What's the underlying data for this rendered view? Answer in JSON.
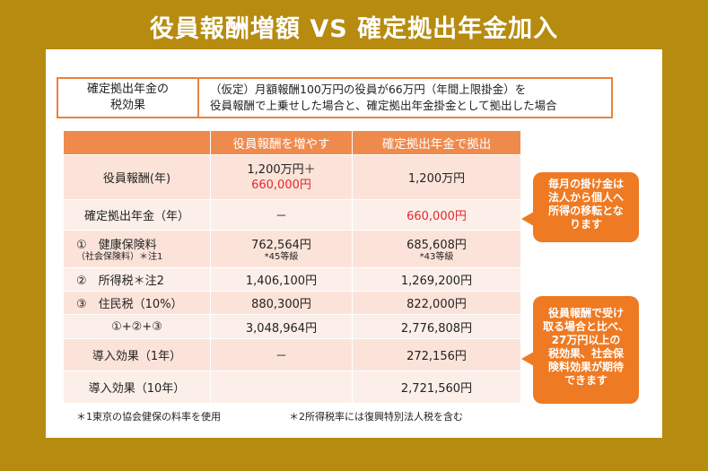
{
  "title": "役員報酬増額 VS 確定拠出年金加入",
  "summary": {
    "label_line1": "確定拠出年金の",
    "label_line2": "税効果",
    "desc_line1": "（仮定）月額報酬100万円の役員が66万円（年間上限掛金）を",
    "desc_line2": "役員報酬で上乗せした場合と、確定拠出年金掛金として拠出した場合"
  },
  "table": {
    "headers": [
      "",
      "役員報酬を増やす",
      "確定拠出年金で拠出"
    ],
    "rows": [
      {
        "label": "役員報酬(年)",
        "sublabel": "",
        "col1": "1,200万円＋",
        "col1b": "660,000円",
        "col1_sub": "",
        "col2": "1,200万円",
        "col2_sub": ""
      },
      {
        "label": "確定拠出年金（年）",
        "sublabel": "",
        "col1": "－",
        "col1b": "",
        "col1_sub": "",
        "col2": "660,000円",
        "col2_sub": ""
      },
      {
        "label": "①　健康保険料",
        "sublabel": "（社会保険料）＊注1",
        "col1": "762,564円",
        "col1b": "",
        "col1_sub": "*45等級",
        "col2": "685,608円",
        "col2_sub": "*43等級"
      },
      {
        "label": "②　所得税＊注2",
        "sublabel": "",
        "col1": "1,406,100円",
        "col1b": "",
        "col1_sub": "",
        "col2": "1,269,200円",
        "col2_sub": ""
      },
      {
        "label": "③　住民税（10%）",
        "sublabel": "",
        "col1": "880,300円",
        "col1b": "",
        "col1_sub": "",
        "col2": "822,000円",
        "col2_sub": ""
      },
      {
        "label": "①+②+③",
        "sublabel": "",
        "col1": "3,048,964円",
        "col1b": "",
        "col1_sub": "",
        "col2": "2,776,808円",
        "col2_sub": ""
      },
      {
        "label": "導入効果（1年）",
        "sublabel": "",
        "col1": "－",
        "col1b": "",
        "col1_sub": "",
        "col2": "272,156円",
        "col2_sub": ""
      },
      {
        "label": "導入効果（10年）",
        "sublabel": "",
        "col1": "",
        "col1b": "",
        "col1_sub": "",
        "col2": "2,721,560円",
        "col2_sub": ""
      }
    ]
  },
  "notes": {
    "note1": "＊1東京の協会健保の料率を使用",
    "note2": "＊2所得税率には復興特別法人税を含む"
  },
  "callouts": {
    "top_line1": "毎月の掛け金は",
    "top_line2": "法人から個人へ",
    "top_line3": "所得の移転とな",
    "top_line4": "ります",
    "bottom_line1": "役員報酬で受け",
    "bottom_line2": "取る場合と比べ、",
    "bottom_line3": "27万円以上の",
    "bottom_line4": "税効果、社会保",
    "bottom_line5": "険料効果が期待",
    "bottom_line6": "できます"
  },
  "colors": {
    "background": "#b68b0f",
    "header": "#ef8a4d",
    "row": "#fbe3d9",
    "accent_red": "#e8262b",
    "callout": "#ee7a23"
  }
}
